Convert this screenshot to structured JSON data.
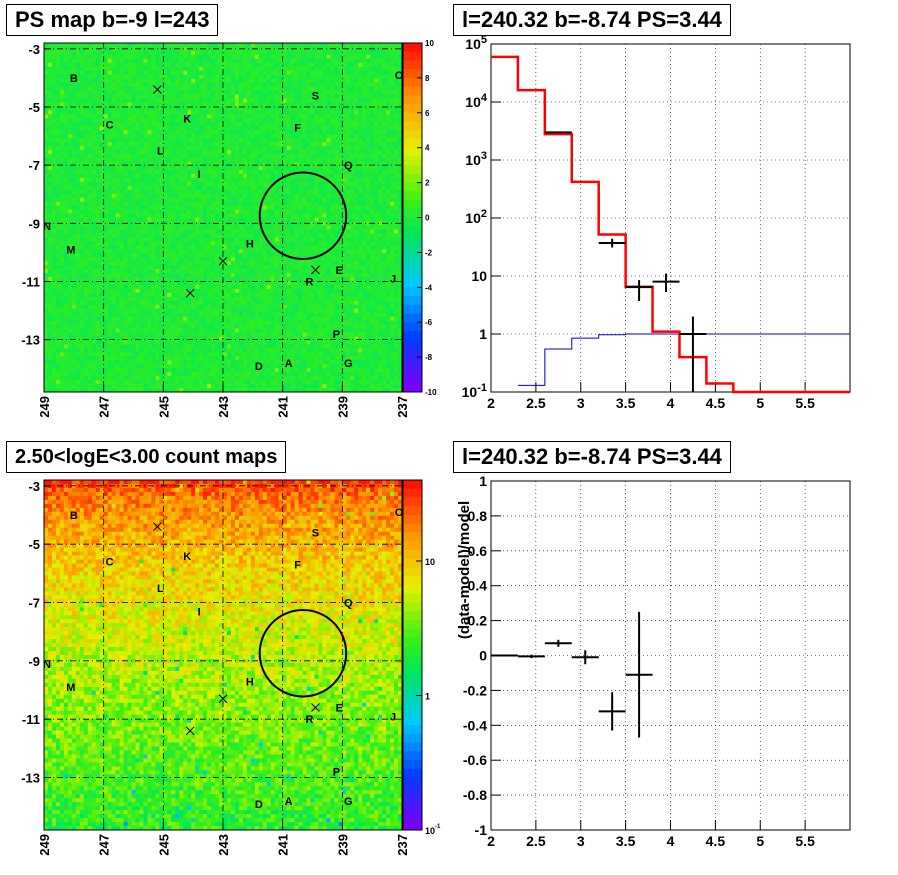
{
  "titles": {
    "map_top": "PS map b=-9 l=243",
    "spec_top": "l=240.32 b=-8.74 PS=3.44",
    "map_bottom": "2.50<logE<3.00 count maps",
    "spec_bottom": "l=240.32 b=-8.74 PS=3.44"
  },
  "colors": {
    "model": "#ff0000",
    "data": "#000000",
    "background_model": "#0000cc",
    "grid": "#000000"
  },
  "chart_data": [
    {
      "type": "heatmap",
      "title": "PS map b=-9 l=243",
      "x_ticks": [
        "249",
        "247",
        "245",
        "243",
        "241",
        "239",
        "237"
      ],
      "y_ticks": [
        "-3",
        "-5",
        "-7",
        "-9",
        "-11",
        "-13"
      ],
      "xlim": [
        249,
        237
      ],
      "ylim": [
        -14.8,
        -2.8
      ],
      "colorbar_ticks": [
        "10",
        "8",
        "6",
        "4",
        "2",
        "0",
        "-2",
        "-4",
        "-6",
        "-8",
        "-10"
      ],
      "colorbar_range": [
        -10,
        10
      ],
      "dominant_value": 0,
      "labels": [
        {
          "text": "B",
          "l": 248.0,
          "b": -4.0
        },
        {
          "text": "O",
          "l": 237.1,
          "b": -3.9
        },
        {
          "text": "S",
          "l": 239.9,
          "b": -4.6
        },
        {
          "text": "C",
          "l": 246.8,
          "b": -5.6
        },
        {
          "text": "K",
          "l": 244.2,
          "b": -5.4
        },
        {
          "text": "F",
          "l": 240.5,
          "b": -5.7
        },
        {
          "text": "L",
          "l": 245.1,
          "b": -6.5
        },
        {
          "text": "Q",
          "l": 238.8,
          "b": -7.0
        },
        {
          "text": "I",
          "l": 243.8,
          "b": -7.3
        },
        {
          "text": "N",
          "l": 248.9,
          "b": -9.1
        },
        {
          "text": "H",
          "l": 242.1,
          "b": -9.7
        },
        {
          "text": "M",
          "l": 248.1,
          "b": -9.9
        },
        {
          "text": "E",
          "l": 239.1,
          "b": -10.6
        },
        {
          "text": "R",
          "l": 240.1,
          "b": -11.0
        },
        {
          "text": "J",
          "l": 237.3,
          "b": -10.9
        },
        {
          "text": "P",
          "l": 239.2,
          "b": -12.8
        },
        {
          "text": "D",
          "l": 241.8,
          "b": -13.9
        },
        {
          "text": "A",
          "l": 240.8,
          "b": -13.8
        },
        {
          "text": "G",
          "l": 238.8,
          "b": -13.8
        }
      ],
      "crosses": [
        {
          "l": 245.2,
          "b": -4.4
        },
        {
          "l": 243.0,
          "b": -10.3
        },
        {
          "l": 244.1,
          "b": -11.4
        },
        {
          "l": 239.9,
          "b": -10.6
        }
      ],
      "circle": {
        "l": 240.32,
        "b": -8.74,
        "radius_deg": 0.5
      }
    },
    {
      "type": "line",
      "title": "l=240.32 b=-8.74 PS=3.44",
      "xlim": [
        2,
        6
      ],
      "ylim": [
        0.1,
        100000
      ],
      "y_log": true,
      "x_ticks": [
        "2",
        "2.5",
        "3",
        "3.5",
        "4",
        "4.5",
        "5",
        "5.5"
      ],
      "y_ticks": [
        "10^{-1}",
        "1",
        "10",
        "10^{2}",
        "10^{3}",
        "10^{4}",
        "10^{5}"
      ],
      "series": [
        {
          "style": "step",
          "edges": [
            2,
            2.3,
            2.6,
            2.9,
            3.2,
            3.5,
            3.8,
            4.1,
            4.4,
            4.7,
            5.0,
            6.0
          ],
          "values": [
            60000,
            16000,
            2800,
            420,
            52,
            6.5,
            1.1,
            0.4,
            0.14,
            0.1,
            0.1
          ]
        },
        {
          "style": "step",
          "edges": [
            2.3,
            2.6,
            2.9,
            3.2,
            3.5,
            3.8,
            4.1,
            4.4,
            4.7,
            5.0,
            6.0
          ],
          "values": [
            0.13,
            0.55,
            0.85,
            0.97,
            1.0,
            1.0,
            1.0,
            1.0,
            1.0,
            1.0
          ]
        },
        {
          "style": "errorbar",
          "x": [
            2.75,
            3.35,
            3.65,
            3.95,
            4.25
          ],
          "xerr": [
            0.15,
            0.15,
            0.15,
            0.15,
            0.15
          ],
          "y": [
            3000,
            37,
            6.5,
            8,
            1.0
          ],
          "ylo": [
            3000,
            31,
            3.7,
            5.3,
            0.1
          ],
          "yhi": [
            3000,
            44,
            8.5,
            11,
            2.0
          ]
        }
      ]
    },
    {
      "type": "heatmap",
      "title": "2.50<logE<3.00 count maps",
      "x_ticks": [
        "249",
        "247",
        "245",
        "243",
        "241",
        "239",
        "237"
      ],
      "y_ticks": [
        "-3",
        "-5",
        "-7",
        "-9",
        "-11",
        "-13"
      ],
      "xlim": [
        249,
        237
      ],
      "ylim": [
        -14.8,
        -2.8
      ],
      "colorbar_ticks": [
        "10",
        "1",
        "10^{-1}"
      ],
      "colorbar_log": true
    },
    {
      "type": "scatter",
      "title": "l=240.32 b=-8.74 PS=3.44",
      "ylabel": "(data-model)/model",
      "xlim": [
        2,
        6
      ],
      "ylim": [
        -1,
        1
      ],
      "x_ticks": [
        "2",
        "2.5",
        "3",
        "3.5",
        "4",
        "4.5",
        "5",
        "5.5"
      ],
      "y_ticks": [
        "1",
        "0.8",
        "0.6",
        "0.4",
        "0.2",
        "0",
        "-0.2",
        "-0.4",
        "-0.6",
        "-0.8",
        "-1"
      ],
      "points": [
        {
          "x": 2.15,
          "y": 0.0,
          "xerr": 0.15,
          "yerr": 0.005
        },
        {
          "x": 2.45,
          "y": -0.005,
          "xerr": 0.15,
          "yerr": 0.01
        },
        {
          "x": 2.75,
          "y": 0.07,
          "xerr": 0.15,
          "yerr": 0.02
        },
        {
          "x": 3.05,
          "y": -0.01,
          "xerr": 0.15,
          "yerr": 0.04
        },
        {
          "x": 3.35,
          "y": -0.32,
          "xerr": 0.15,
          "yerr": 0.11
        },
        {
          "x": 3.65,
          "y": -0.11,
          "xerr": 0.15,
          "yerr": 0.36
        }
      ]
    }
  ]
}
